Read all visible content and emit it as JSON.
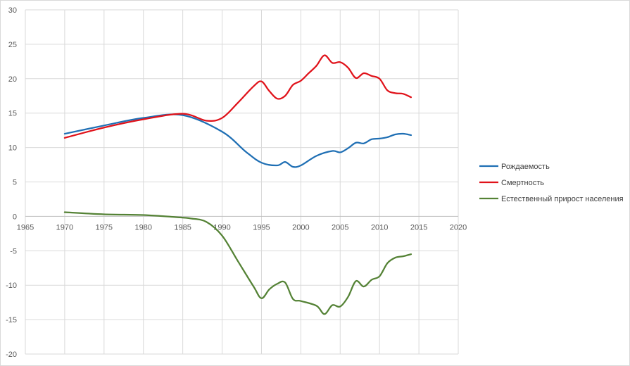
{
  "chart_data": {
    "type": "line",
    "title": "",
    "xlabel": "",
    "ylabel": "",
    "xlim": [
      1965,
      2020
    ],
    "ylim": [
      -20,
      30
    ],
    "x_ticks": [
      1965,
      1970,
      1975,
      1980,
      1985,
      1990,
      1995,
      2000,
      2005,
      2010,
      2015,
      2020
    ],
    "y_ticks": [
      -20,
      -15,
      -10,
      -5,
      0,
      5,
      10,
      15,
      20,
      25,
      30
    ],
    "grid": true,
    "legend_position": "right",
    "series": [
      {
        "name": "Рождаемость",
        "color": "#1f6fb4",
        "points": [
          [
            1970,
            12.0
          ],
          [
            1975,
            13.2
          ],
          [
            1980,
            14.3
          ],
          [
            1985,
            14.7
          ],
          [
            1990,
            12.3
          ],
          [
            1993,
            9.4
          ],
          [
            1995,
            7.8
          ],
          [
            1997,
            7.4
          ],
          [
            1998,
            7.9
          ],
          [
            1999,
            7.2
          ],
          [
            2000,
            7.4
          ],
          [
            2002,
            8.8
          ],
          [
            2004,
            9.5
          ],
          [
            2005,
            9.3
          ],
          [
            2006,
            9.9
          ],
          [
            2007,
            10.7
          ],
          [
            2008,
            10.6
          ],
          [
            2009,
            11.2
          ],
          [
            2010,
            11.3
          ],
          [
            2011,
            11.5
          ],
          [
            2012,
            11.9
          ],
          [
            2013,
            12.0
          ],
          [
            2014,
            11.8
          ]
        ]
      },
      {
        "name": "Смертность",
        "color": "#e0121a",
        "points": [
          [
            1970,
            11.4
          ],
          [
            1975,
            12.9
          ],
          [
            1980,
            14.1
          ],
          [
            1985,
            14.9
          ],
          [
            1988,
            13.9
          ],
          [
            1990,
            14.3
          ],
          [
            1992,
            16.5
          ],
          [
            1994,
            18.9
          ],
          [
            1995,
            19.6
          ],
          [
            1996,
            18.2
          ],
          [
            1997,
            17.1
          ],
          [
            1998,
            17.5
          ],
          [
            1999,
            19.1
          ],
          [
            2000,
            19.7
          ],
          [
            2001,
            20.8
          ],
          [
            2002,
            21.9
          ],
          [
            2003,
            23.4
          ],
          [
            2004,
            22.3
          ],
          [
            2005,
            22.4
          ],
          [
            2006,
            21.6
          ],
          [
            2007,
            20.1
          ],
          [
            2008,
            20.8
          ],
          [
            2009,
            20.4
          ],
          [
            2010,
            20.0
          ],
          [
            2011,
            18.3
          ],
          [
            2012,
            17.9
          ],
          [
            2013,
            17.8
          ],
          [
            2014,
            17.3
          ]
        ]
      },
      {
        "name": "Естественный прирост населения",
        "color": "#548235",
        "points": [
          [
            1970,
            0.6
          ],
          [
            1975,
            0.3
          ],
          [
            1980,
            0.2
          ],
          [
            1984,
            -0.1
          ],
          [
            1986,
            -0.3
          ],
          [
            1988,
            -0.8
          ],
          [
            1990,
            -2.8
          ],
          [
            1992,
            -6.5
          ],
          [
            1994,
            -10.2
          ],
          [
            1995,
            -11.9
          ],
          [
            1996,
            -10.6
          ],
          [
            1997,
            -9.8
          ],
          [
            1998,
            -9.6
          ],
          [
            1999,
            -12.0
          ],
          [
            2000,
            -12.3
          ],
          [
            2002,
            -13.0
          ],
          [
            2003,
            -14.2
          ],
          [
            2004,
            -12.9
          ],
          [
            2005,
            -13.1
          ],
          [
            2006,
            -11.7
          ],
          [
            2007,
            -9.4
          ],
          [
            2008,
            -10.2
          ],
          [
            2009,
            -9.2
          ],
          [
            2010,
            -8.7
          ],
          [
            2011,
            -6.8
          ],
          [
            2012,
            -6.0
          ],
          [
            2013,
            -5.8
          ],
          [
            2014,
            -5.5
          ]
        ]
      }
    ]
  }
}
